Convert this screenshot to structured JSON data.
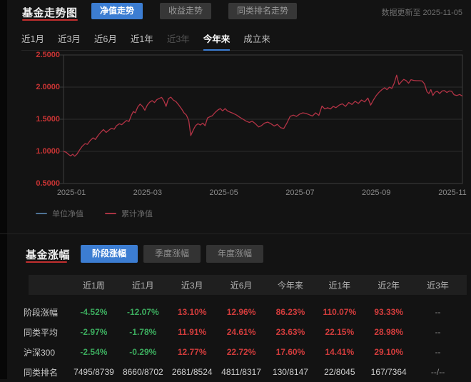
{
  "header": {
    "title": "基金走势图",
    "updated": "数据更新至 2025-11-05",
    "tabs": [
      {
        "label": "净值走势",
        "active": true
      },
      {
        "label": "收益走势",
        "active": false
      },
      {
        "label": "同类排名走势",
        "active": false
      }
    ]
  },
  "ranges": [
    {
      "label": "近1月"
    },
    {
      "label": "近3月"
    },
    {
      "label": "近6月"
    },
    {
      "label": "近1年"
    },
    {
      "label": "近3年",
      "disabled": true
    },
    {
      "label": "今年来",
      "active": true
    },
    {
      "label": "成立来"
    }
  ],
  "chart_data": {
    "type": "line",
    "title": "基金走势图 净值走势(今年来)",
    "ylim": [
      0.5,
      2.5
    ],
    "yticks": [
      "2.5000",
      "2.0000",
      "1.5000",
      "1.0000",
      "0.5000"
    ],
    "xticks": [
      "2025-01",
      "2025-03",
      "2025-05",
      "2025-07",
      "2025-09",
      "2025-11"
    ],
    "grid": true,
    "legend_position": "bottom-left",
    "legend": [
      {
        "name": "单位净值",
        "color": "#4f7396"
      },
      {
        "name": "累计净值",
        "color": "#a93443"
      }
    ],
    "series": [
      {
        "name": "累计净值",
        "color": "#b23345",
        "points": [
          [
            0.0,
            1.0
          ],
          [
            0.007,
            0.985
          ],
          [
            0.013,
            0.95
          ],
          [
            0.018,
            0.93
          ],
          [
            0.023,
            0.955
          ],
          [
            0.028,
            0.925
          ],
          [
            0.034,
            0.96
          ],
          [
            0.04,
            1.02
          ],
          [
            0.047,
            1.08
          ],
          [
            0.054,
            1.12
          ],
          [
            0.06,
            1.11
          ],
          [
            0.067,
            1.17
          ],
          [
            0.074,
            1.21
          ],
          [
            0.08,
            1.185
          ],
          [
            0.087,
            1.25
          ],
          [
            0.094,
            1.3
          ],
          [
            0.1,
            1.34
          ],
          [
            0.107,
            1.295
          ],
          [
            0.114,
            1.33
          ],
          [
            0.12,
            1.36
          ],
          [
            0.127,
            1.345
          ],
          [
            0.133,
            1.4
          ],
          [
            0.14,
            1.43
          ],
          [
            0.146,
            1.415
          ],
          [
            0.152,
            1.45
          ],
          [
            0.158,
            1.48
          ],
          [
            0.164,
            1.465
          ],
          [
            0.17,
            1.56
          ],
          [
            0.175,
            1.62
          ],
          [
            0.18,
            1.6
          ],
          [
            0.186,
            1.69
          ],
          [
            0.192,
            1.735
          ],
          [
            0.198,
            1.7
          ],
          [
            0.204,
            1.64
          ],
          [
            0.21,
            1.72
          ],
          [
            0.216,
            1.765
          ],
          [
            0.222,
            1.79
          ],
          [
            0.228,
            1.76
          ],
          [
            0.234,
            1.805
          ],
          [
            0.24,
            1.825
          ],
          [
            0.246,
            1.84
          ],
          [
            0.252,
            1.78
          ],
          [
            0.257,
            1.7
          ],
          [
            0.263,
            1.82
          ],
          [
            0.269,
            1.845
          ],
          [
            0.275,
            1.8
          ],
          [
            0.282,
            1.775
          ],
          [
            0.289,
            1.72
          ],
          [
            0.296,
            1.66
          ],
          [
            0.302,
            1.6
          ],
          [
            0.308,
            1.565
          ],
          [
            0.314,
            1.48
          ],
          [
            0.319,
            1.245
          ],
          [
            0.325,
            1.33
          ],
          [
            0.331,
            1.4
          ],
          [
            0.337,
            1.43
          ],
          [
            0.343,
            1.41
          ],
          [
            0.349,
            1.44
          ],
          [
            0.355,
            1.4
          ],
          [
            0.361,
            1.52
          ],
          [
            0.367,
            1.54
          ],
          [
            0.373,
            1.555
          ],
          [
            0.38,
            1.605
          ],
          [
            0.387,
            1.645
          ],
          [
            0.393,
            1.665
          ],
          [
            0.399,
            1.63
          ],
          [
            0.405,
            1.665
          ],
          [
            0.411,
            1.63
          ],
          [
            0.418,
            1.61
          ],
          [
            0.426,
            1.59
          ],
          [
            0.434,
            1.565
          ],
          [
            0.442,
            1.53
          ],
          [
            0.45,
            1.5
          ],
          [
            0.458,
            1.47
          ],
          [
            0.466,
            1.45
          ],
          [
            0.473,
            1.47
          ],
          [
            0.481,
            1.43
          ],
          [
            0.489,
            1.38
          ],
          [
            0.496,
            1.4
          ],
          [
            0.504,
            1.44
          ],
          [
            0.512,
            1.455
          ],
          [
            0.52,
            1.43
          ],
          [
            0.528,
            1.395
          ],
          [
            0.536,
            1.42
          ],
          [
            0.544,
            1.37
          ],
          [
            0.552,
            1.355
          ],
          [
            0.56,
            1.44
          ],
          [
            0.568,
            1.545
          ],
          [
            0.576,
            1.565
          ],
          [
            0.584,
            1.545
          ],
          [
            0.592,
            1.58
          ],
          [
            0.6,
            1.6
          ],
          [
            0.608,
            1.59
          ],
          [
            0.616,
            1.57
          ],
          [
            0.624,
            1.55
          ],
          [
            0.632,
            1.6
          ],
          [
            0.64,
            1.56
          ],
          [
            0.648,
            1.705
          ],
          [
            0.655,
            1.66
          ],
          [
            0.662,
            1.68
          ],
          [
            0.669,
            1.66
          ],
          [
            0.676,
            1.7
          ],
          [
            0.683,
            1.68
          ],
          [
            0.691,
            1.72
          ],
          [
            0.699,
            1.74
          ],
          [
            0.707,
            1.7
          ],
          [
            0.715,
            1.76
          ],
          [
            0.723,
            1.73
          ],
          [
            0.731,
            1.78
          ],
          [
            0.739,
            1.745
          ],
          [
            0.747,
            1.8
          ],
          [
            0.755,
            1.77
          ],
          [
            0.763,
            1.83
          ],
          [
            0.77,
            1.72
          ],
          [
            0.777,
            1.8
          ],
          [
            0.784,
            1.87
          ],
          [
            0.791,
            1.92
          ],
          [
            0.798,
            1.96
          ],
          [
            0.805,
            1.99
          ],
          [
            0.811,
            1.96
          ],
          [
            0.817,
            2.0
          ],
          [
            0.823,
            1.98
          ],
          [
            0.829,
            2.06
          ],
          [
            0.835,
            2.185
          ],
          [
            0.841,
            2.04
          ],
          [
            0.847,
            2.085
          ],
          [
            0.853,
            2.12
          ],
          [
            0.859,
            2.1
          ],
          [
            0.865,
            2.06
          ],
          [
            0.871,
            2.115
          ],
          [
            0.878,
            2.105
          ],
          [
            0.885,
            2.1
          ],
          [
            0.892,
            2.1
          ],
          [
            0.899,
            2.095
          ],
          [
            0.905,
            2.05
          ],
          [
            0.911,
            1.93
          ],
          [
            0.916,
            1.9
          ],
          [
            0.921,
            1.96
          ],
          [
            0.926,
            1.87
          ],
          [
            0.931,
            1.92
          ],
          [
            0.937,
            1.935
          ],
          [
            0.943,
            1.9
          ],
          [
            0.949,
            1.94
          ],
          [
            0.955,
            1.945
          ],
          [
            0.961,
            1.915
          ],
          [
            0.967,
            1.94
          ],
          [
            0.973,
            1.935
          ],
          [
            0.979,
            1.88
          ],
          [
            0.986,
            1.87
          ],
          [
            0.993,
            1.885
          ],
          [
            1.0,
            1.86
          ]
        ]
      }
    ]
  },
  "gains": {
    "title": "基金涨幅",
    "tabs": [
      {
        "label": "阶段涨幅",
        "active": true
      },
      {
        "label": "季度涨幅",
        "active": false
      },
      {
        "label": "年度涨幅",
        "active": false
      }
    ],
    "table": {
      "columns": [
        "近1周",
        "近1月",
        "近3月",
        "近6月",
        "今年来",
        "近1年",
        "近2年",
        "近3年"
      ],
      "rows": [
        {
          "label": "阶段涨幅",
          "kind": "pct",
          "values": [
            "-4.52%",
            "-12.07%",
            "13.10%",
            "12.96%",
            "86.23%",
            "110.07%",
            "93.33%",
            "--"
          ]
        },
        {
          "label": "同类平均",
          "kind": "pct",
          "values": [
            "-2.97%",
            "-1.78%",
            "11.91%",
            "24.61%",
            "23.63%",
            "22.15%",
            "28.98%",
            "--"
          ]
        },
        {
          "label": "沪深300",
          "kind": "pct",
          "values": [
            "-2.54%",
            "-0.29%",
            "12.77%",
            "22.72%",
            "17.60%",
            "14.41%",
            "29.10%",
            "--"
          ]
        },
        {
          "label": "同类排名",
          "kind": "rank",
          "values": [
            "7495/8739",
            "8660/8702",
            "2681/8524",
            "4811/8317",
            "130/8147",
            "22/8045",
            "167/7364",
            "--/--"
          ]
        }
      ]
    }
  },
  "colors": {
    "accent_blue": "#3c7dd2",
    "up_red": "#d23c3c",
    "down_green": "#3cab5e",
    "axis_label_red": "#c93434",
    "line_red": "#b23345",
    "title_underline": "#c32f2f",
    "grid": "#2d2d2d",
    "plot_border": "#3d3d3d"
  }
}
